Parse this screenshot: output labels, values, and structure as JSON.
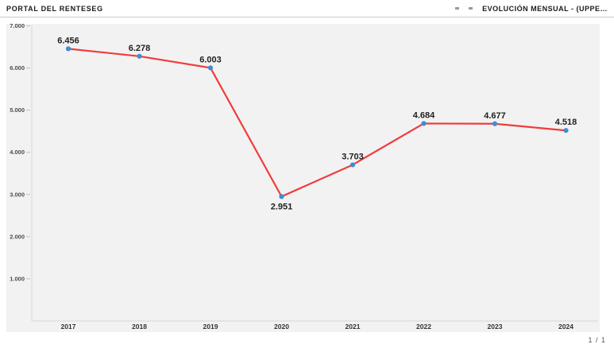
{
  "header": {
    "left_title": "PORTAL DEL RENTESEG",
    "right_title": "EVOLUCIÓN MENSUAL - (UPPE…"
  },
  "footer": {
    "page_indicator": "1 / 1"
  },
  "chart_data": {
    "type": "line",
    "title": "",
    "xlabel": "",
    "ylabel": "",
    "categories": [
      "2017",
      "2018",
      "2019",
      "2020",
      "2021",
      "2022",
      "2023",
      "2024"
    ],
    "values": [
      6456,
      6278,
      6003,
      2951,
      3703,
      4684,
      4677,
      4518
    ],
    "point_labels": [
      "6.456",
      "6.278",
      "6.003",
      "2.951",
      "3.703",
      "4.684",
      "4.677",
      "4.518"
    ],
    "label_side": [
      "above",
      "above",
      "above",
      "below",
      "above",
      "above",
      "above",
      "above"
    ],
    "y_ticks": [
      "7.000",
      "6.000",
      "5.000",
      "4.000",
      "3.000",
      "2.000",
      "1.000"
    ],
    "y_tick_values": [
      7000,
      6000,
      5000,
      4000,
      3000,
      2000,
      1000
    ],
    "ylim": [
      0,
      7000
    ],
    "grid": false,
    "legend": "none",
    "colors": {
      "line": "#f03c3c",
      "marker": "#3e8ed6",
      "plot_bg": "#f2f2f2",
      "axis": "#d6d6d6",
      "tick_mark": "#bfbfbf",
      "tick_text": "#4d4d4d",
      "x_text": "#333333",
      "label_text": "#222222"
    }
  }
}
